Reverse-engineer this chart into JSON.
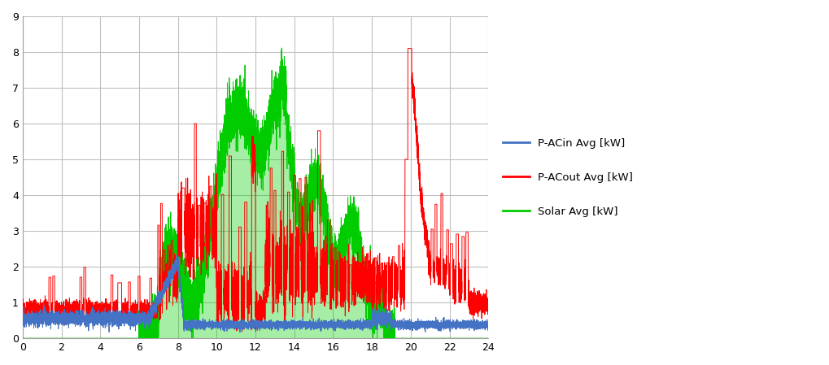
{
  "xlim": [
    0,
    24
  ],
  "ylim": [
    0,
    9
  ],
  "xticks": [
    0,
    2,
    4,
    6,
    8,
    10,
    12,
    14,
    16,
    18,
    20,
    22,
    24
  ],
  "yticks": [
    0,
    1,
    2,
    3,
    4,
    5,
    6,
    7,
    8,
    9
  ],
  "blue_color": "#4472C4",
  "red_color": "#FF0000",
  "green_color": "#00CC00",
  "legend_labels": [
    "P-ACin Avg [kW]",
    "P-ACout Avg [kW]",
    "Solar Avg [kW]"
  ],
  "figsize": [
    10.2,
    4.49
  ],
  "dpi": 100,
  "background_color": "#FFFFFF",
  "grid_color": "#C0C0C0"
}
